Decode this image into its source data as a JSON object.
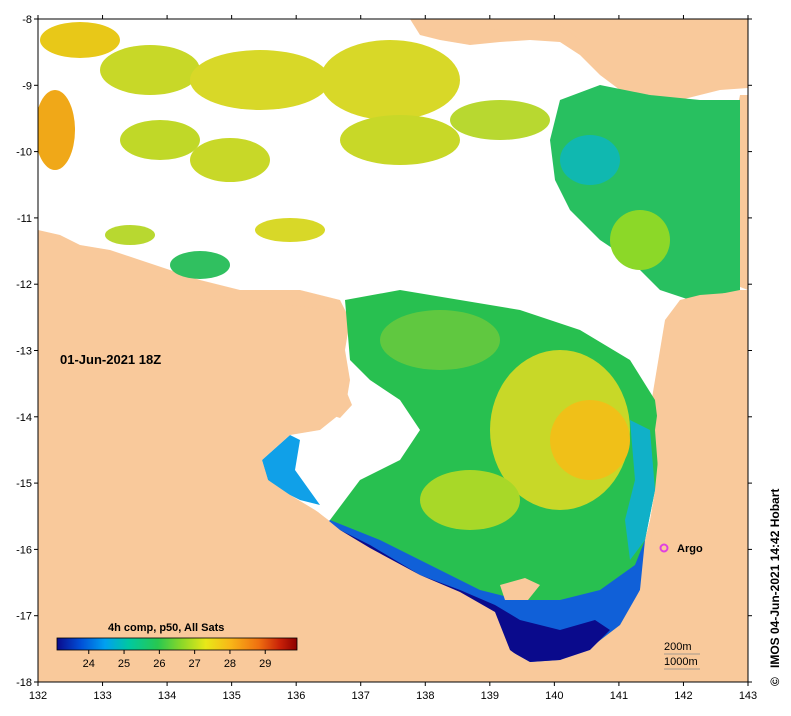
{
  "map": {
    "date_label": "01-Jun-2021 18Z",
    "x_axis": {
      "ticks": [
        "132",
        "133",
        "134",
        "135",
        "136",
        "137",
        "138",
        "139",
        "140",
        "141",
        "142",
        "143"
      ]
    },
    "y_axis": {
      "ticks": [
        "-8",
        "-9",
        "-10",
        "-11",
        "-12",
        "-13",
        "-14",
        "-15",
        "-16",
        "-17",
        "-18"
      ]
    },
    "colors": {
      "land": "#F9C99B",
      "cloud": "#FFFFFF",
      "frame": "#000000"
    }
  },
  "legend": {
    "title": "4h comp, p50, All Sats",
    "ticks": [
      "24",
      "25",
      "26",
      "27",
      "28",
      "29"
    ],
    "colors": [
      "#0a0a8c",
      "#0050d8",
      "#00a0f0",
      "#00c8a0",
      "#28c850",
      "#8cd828",
      "#e8e818",
      "#f8b818",
      "#f07010",
      "#c82008",
      "#8c0000"
    ]
  },
  "contours": {
    "labels": [
      "200m",
      "1000m"
    ]
  },
  "marker": {
    "label": "Argo",
    "color": "#E040E0"
  },
  "credit": "IMOS 04-Jun-2021 14:42 Hobart",
  "copyright_symbol": "©"
}
